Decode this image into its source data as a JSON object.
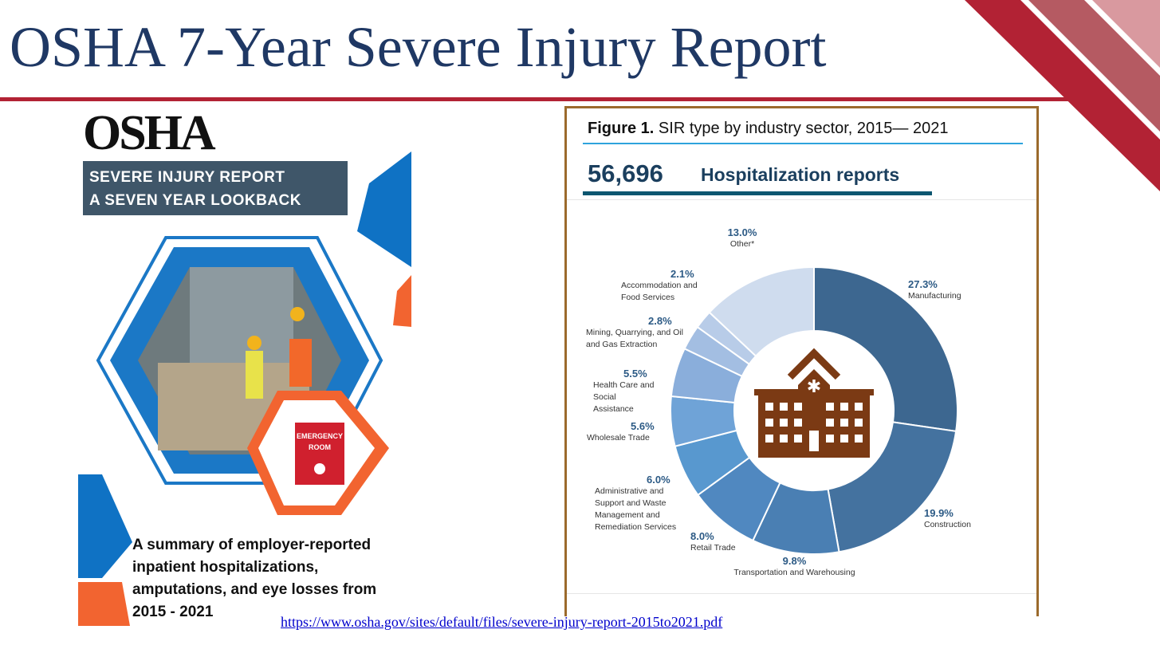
{
  "slide": {
    "title": "OSHA 7-Year Severe Injury Report",
    "link": "https://www.osha.gov/sites/default/files/severe-injury-report-2015to2021.pdf"
  },
  "cover": {
    "logo": "OSHA",
    "banner_line1": "SEVERE INJURY REPORT",
    "banner_line2": "A SEVEN YEAR LOOKBACK",
    "sign_line1": "EMERGENCY",
    "sign_line2": "ROOM",
    "summary": [
      "A summary of employer-reported",
      "inpatient hospitalizations,",
      "amputations, and eye losses from",
      "2015 - 2021"
    ]
  },
  "chart_data": {
    "type": "pie",
    "title_bold": "Figure 1.",
    "title": "SIR type by industry sector, 2015— 2021",
    "total": "56,696",
    "total_label": "Hospitalization reports",
    "categories": [
      "Manufacturing",
      "Construction",
      "Transportation and Warehousing",
      "Retail Trade",
      "Administrative and Support and Waste Management and Remediation Services",
      "Wholesale Trade",
      "Health Care and Social Assistance",
      "Mining, Quarrying, and Oil and Gas Extraction",
      "Accommodation and Food Services",
      "Other*"
    ],
    "values": [
      27.3,
      19.9,
      9.8,
      8.0,
      6.0,
      5.6,
      5.5,
      2.8,
      2.1,
      13.0
    ],
    "labels": [
      "27.3%",
      "19.9%",
      "9.8%",
      "8.0%",
      "6.0%",
      "5.6%",
      "5.5%",
      "2.8%",
      "2.1%",
      "13.0%"
    ],
    "colors": [
      "#3d6790",
      "#44729f",
      "#4a7fb3",
      "#5088c0",
      "#5898cf",
      "#6fa3d7",
      "#8aaedb",
      "#a3bee2",
      "#b8cce8",
      "#cfdcee"
    ]
  }
}
